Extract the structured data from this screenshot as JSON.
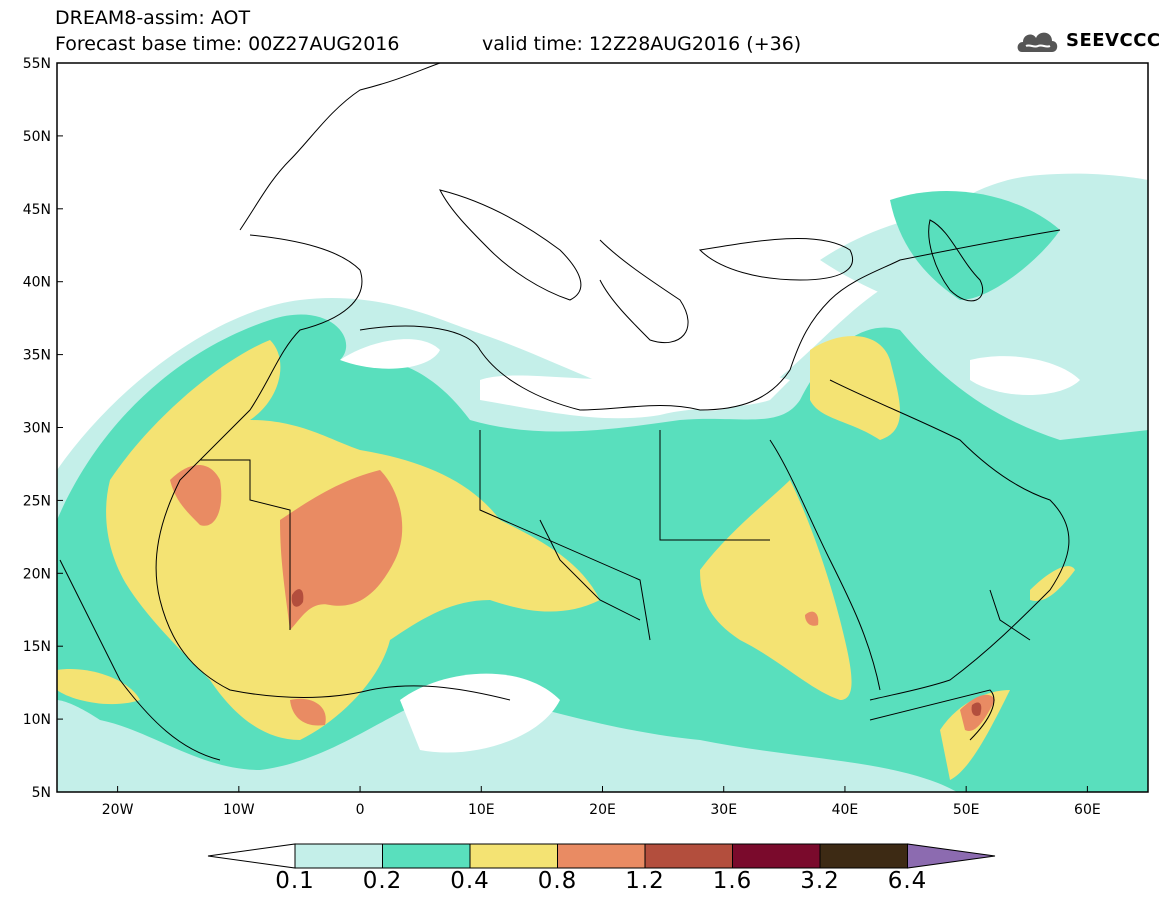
{
  "header": {
    "title": "DREAM8-assim: AOT",
    "base_time": "Forecast base time: 00Z27AUG2016",
    "valid_time": "valid time: 12Z28AUG2016 (+36)"
  },
  "logo": {
    "text": "SEEVCCC",
    "icon": "cloud-icon"
  },
  "map": {
    "lat_labels": [
      "55N",
      "50N",
      "45N",
      "40N",
      "35N",
      "30N",
      "25N",
      "20N",
      "15N",
      "10N",
      "5N"
    ],
    "lon_labels": [
      "20W",
      "10W",
      "0",
      "10E",
      "20E",
      "30E",
      "40E",
      "50E",
      "60E"
    ],
    "lon_range": [
      -25,
      65
    ],
    "lat_range": [
      5,
      55
    ]
  },
  "colorbar": {
    "labels": [
      "0.1",
      "0.2",
      "0.4",
      "0.8",
      "1.2",
      "1.6",
      "3.2",
      "6.4"
    ],
    "colors": [
      "#ffffff",
      "#c4efe9",
      "#59dfbd",
      "#f4e373",
      "#e98b63",
      "#b34e3d",
      "#7a0a2c",
      "#3d2a14",
      "#8c6bb0"
    ]
  }
}
